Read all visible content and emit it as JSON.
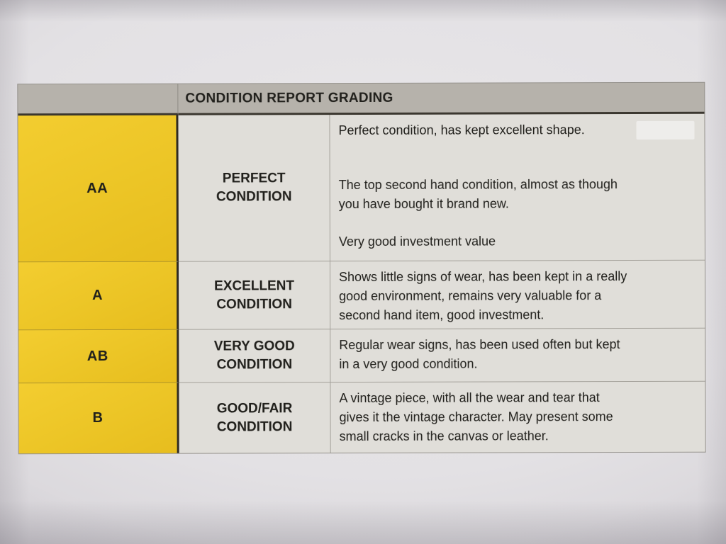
{
  "colors": {
    "paper": "#e9e7ea",
    "header_bg": "#b6b2ab",
    "cell_bg": "#e0ded9",
    "grade_bg": "#ecc526",
    "dark_border": "#3b372f",
    "light_border": "#a3a099",
    "text": "#21201c"
  },
  "header": {
    "title": "CONDITION REPORT GRADING"
  },
  "rows": [
    {
      "grade": "AA",
      "label": "PERFECT\nCONDITION",
      "paragraphs": {
        "p1": "Perfect condition, has kept excellent shape.",
        "p2": "The top second hand condition, almost as though\nyou have bought it brand new.",
        "p3": "Very good investment value"
      }
    },
    {
      "grade": "A",
      "label": "EXCELLENT\nCONDITION",
      "paragraphs": {
        "p1": "Shows little signs of wear, has been kept in a really\ngood environment, remains very valuable for a\nsecond hand item, good investment."
      }
    },
    {
      "grade": "AB",
      "label": "VERY GOOD\nCONDITION",
      "paragraphs": {
        "p1": "Regular wear signs, has been used often but kept\nin a very good condition."
      }
    },
    {
      "grade": "B",
      "label": "GOOD/FAIR\nCONDITION",
      "paragraphs": {
        "p1": "A vintage piece, with all the wear and tear that\ngives it the vintage character. May present some\nsmall cracks in the canvas or leather."
      }
    }
  ]
}
